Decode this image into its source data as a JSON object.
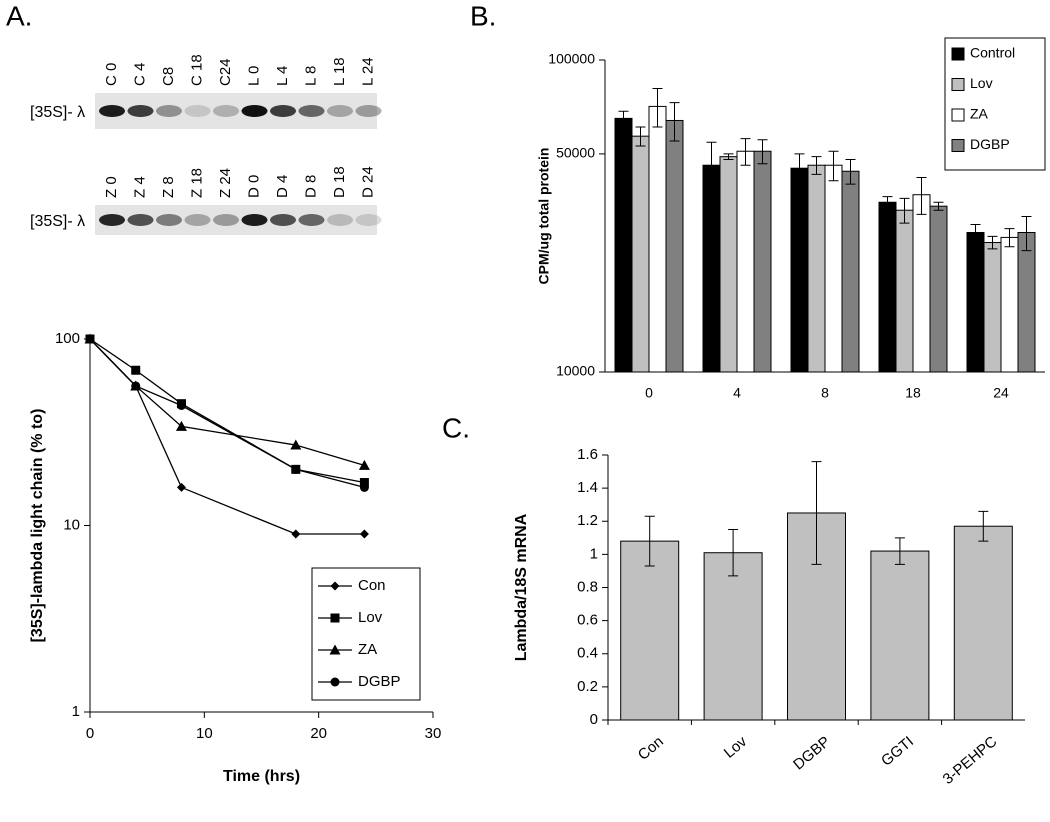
{
  "panel_labels": [
    "A.",
    "B.",
    "C."
  ],
  "gels": [
    {
      "lanes": [
        "C 0",
        "C 4",
        "C8",
        "C 18",
        "C24",
        "L 0",
        "L 4",
        "L 8",
        "L 18",
        "L 24"
      ],
      "label": "[35S]- λ"
    },
    {
      "lanes": [
        "Z 0",
        "Z 4",
        "Z 8",
        "Z 18",
        "Z 24",
        "D 0",
        "D 4",
        "D 8",
        "D 18",
        "D 24"
      ],
      "label": "[35S]- λ"
    }
  ],
  "chart_data": [
    {
      "type": "line",
      "x_label": "Time (hrs)",
      "y_label": "[35S]-lambda light chain (% to)",
      "x": [
        0,
        4,
        8,
        18,
        24
      ],
      "series": [
        {
          "name": "Con",
          "color": "#000000",
          "marker": "diamond",
          "values": [
            100,
            56,
            16,
            9,
            9
          ]
        },
        {
          "name": "Lov",
          "color": "#000000",
          "marker": "square",
          "values": [
            100,
            68,
            45,
            20,
            17
          ]
        },
        {
          "name": "ZA",
          "color": "#000000",
          "marker": "triangle",
          "values": [
            100,
            56,
            34,
            27,
            21
          ]
        },
        {
          "name": "DGBP",
          "color": "#000000",
          "marker": "circle",
          "values": [
            100,
            56,
            44,
            20,
            16
          ]
        }
      ],
      "xlim": [
        0,
        30
      ],
      "xticks": [
        0,
        10,
        20,
        30
      ],
      "ylim": [
        1,
        100
      ],
      "yticks": [
        1,
        10,
        100
      ],
      "log_scale": true,
      "legend": "lower right"
    },
    {
      "type": "grouped_bar",
      "y_label": "CPM/ug total protein",
      "categories": [
        "0",
        "4",
        "8",
        "18",
        "24"
      ],
      "series": [
        {
          "name": "Control",
          "color": "#000000",
          "values": [
            65000,
            46000,
            45000,
            35000,
            28000
          ],
          "errors": [
            3500,
            8500,
            5000,
            1500,
            1700
          ]
        },
        {
          "name": "Lov",
          "color": "#c0c0c0",
          "values": [
            57000,
            49000,
            46000,
            33000,
            26000
          ],
          "errors": [
            4000,
            1000,
            3000,
            3000,
            1200
          ]
        },
        {
          "name": "ZA",
          "color": "#ffffff",
          "values": [
            71000,
            51000,
            46000,
            37000,
            27000
          ],
          "errors": [
            10000,
            5000,
            5000,
            5000,
            1800
          ]
        },
        {
          "name": "DGBP",
          "color": "#808080",
          "values": [
            64000,
            51000,
            44000,
            34000,
            28000
          ],
          "errors": [
            9000,
            4500,
            4000,
            1000,
            3500
          ]
        }
      ],
      "ylim": [
        10000,
        100000
      ],
      "yticks": [
        10000,
        50000,
        100000
      ],
      "log_scale": true,
      "legend": "upper right"
    },
    {
      "type": "bar",
      "y_label": "Lambda/18S mRNA",
      "categories": [
        "Con",
        "Lov",
        "DGBP",
        "GGTI",
        "3-PEHPC"
      ],
      "values": [
        1.08,
        1.01,
        1.25,
        1.02,
        1.17
      ],
      "errors": [
        0.15,
        0.14,
        0.31,
        0.08,
        0.09
      ],
      "color": "#c0c0c0",
      "ylim": [
        0,
        1.6
      ],
      "yticks": [
        0,
        0.2,
        0.4,
        0.6,
        0.8,
        1,
        1.2,
        1.4,
        1.6
      ]
    }
  ]
}
